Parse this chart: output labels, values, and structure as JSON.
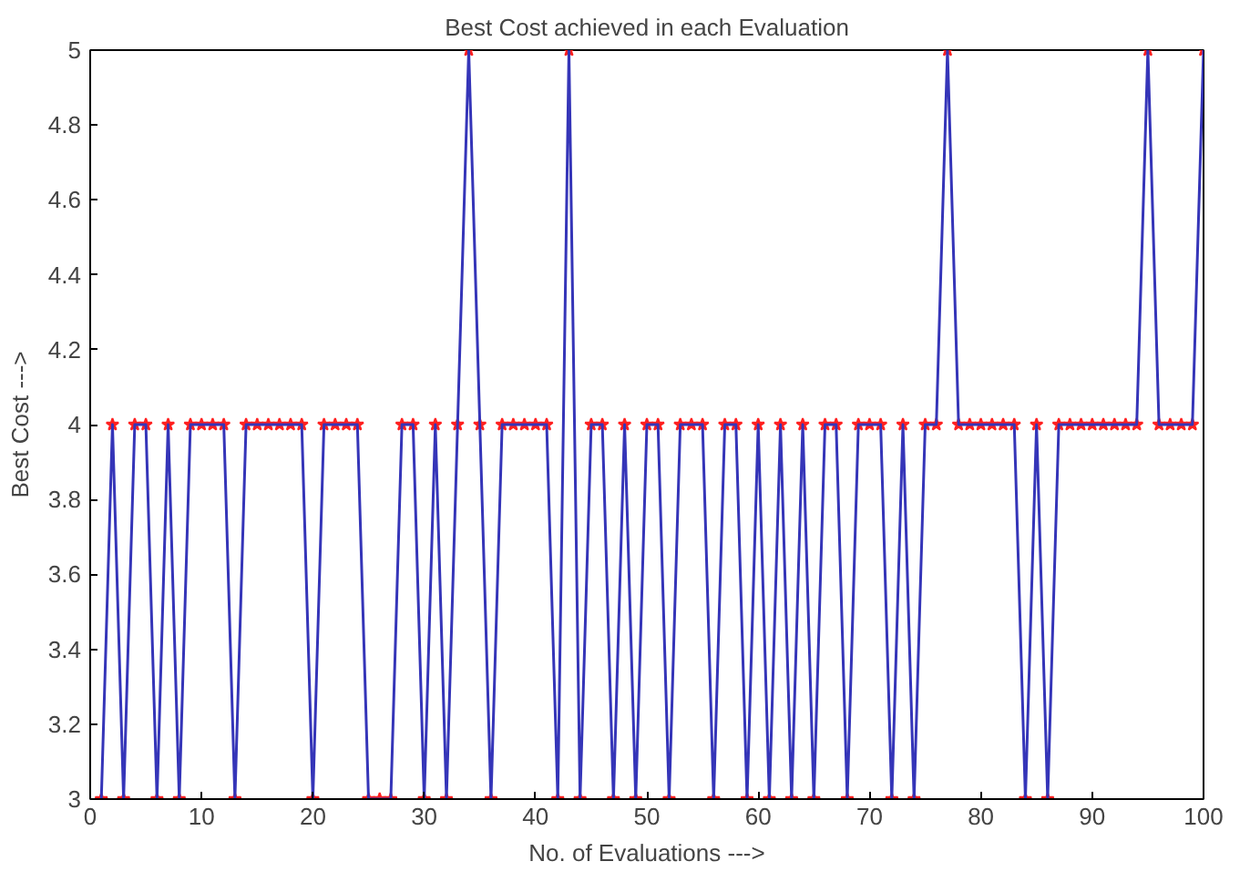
{
  "chart_data": {
    "type": "line",
    "title": "Best Cost achieved in each Evaluation",
    "xlabel": "No. of Evaluations --->",
    "ylabel": "Best Cost --->",
    "x": [
      1,
      2,
      3,
      4,
      5,
      6,
      7,
      8,
      9,
      10,
      11,
      12,
      13,
      14,
      15,
      16,
      17,
      18,
      19,
      20,
      21,
      22,
      23,
      24,
      25,
      26,
      27,
      28,
      29,
      30,
      31,
      32,
      33,
      34,
      35,
      36,
      37,
      38,
      39,
      40,
      41,
      42,
      43,
      44,
      45,
      46,
      47,
      48,
      49,
      50,
      51,
      52,
      53,
      54,
      55,
      56,
      57,
      58,
      59,
      60,
      61,
      62,
      63,
      64,
      65,
      66,
      67,
      68,
      69,
      70,
      71,
      72,
      73,
      74,
      75,
      76,
      77,
      78,
      79,
      80,
      81,
      82,
      83,
      84,
      85,
      86,
      87,
      88,
      89,
      90,
      91,
      92,
      93,
      94,
      95,
      96,
      97,
      98,
      99,
      100
    ],
    "series": [
      {
        "color": "#3535b8",
        "values": [
          3,
          4,
          3,
          4,
          4,
          3,
          4,
          3,
          4,
          4,
          4,
          4,
          3,
          4,
          4,
          4,
          4,
          4,
          4,
          3,
          4,
          4,
          4,
          4,
          3,
          3,
          3,
          4,
          4,
          3,
          4,
          3,
          4,
          5,
          4,
          3,
          4,
          4,
          4,
          4,
          4,
          3,
          5,
          3,
          4,
          4,
          3,
          4,
          3,
          4,
          4,
          3,
          4,
          4,
          4,
          3,
          4,
          4,
          3,
          4,
          3,
          4,
          3,
          4,
          3,
          4,
          4,
          3,
          4,
          4,
          4,
          3,
          4,
          3,
          4,
          4,
          5,
          4,
          4,
          4,
          4,
          4,
          4,
          3,
          4,
          3,
          4,
          4,
          4,
          4,
          4,
          4,
          4,
          4,
          5,
          4,
          4,
          4,
          4,
          5
        ],
        "colors": [
          "#ff2020",
          "#ff2020",
          "#ff2020",
          "#ff2020",
          "#ff2020",
          "#ff2020",
          "#ff2020",
          "#ff2020",
          "#ff2020",
          "#ff2020",
          "#ff2020",
          "#ff2020",
          "#ff2020",
          "#ff2020",
          "#ff2020",
          "#ff2020",
          "#ff2020",
          "#ff2020",
          "#ff2020",
          "#ff2020",
          "#ff2020",
          "#ff2020",
          "#ff2020",
          "#ff2020",
          "#ff2020",
          "#ff2020",
          "#ff2020",
          "#ff2020",
          "#ff2020",
          "#ff2020",
          "#ff2020",
          "#ff2020",
          "#ff2020",
          "#ff2020",
          "#ff2020",
          "#ff2020",
          "#ff2020",
          "#ff2020",
          "#ff2020",
          "#ff2020",
          "#ff2020",
          "#ff2020",
          "#ff2020",
          "#ff2020",
          "#ff2020",
          "#ff2020",
          "#ff2020",
          "#ff2020",
          "#ff2020",
          "#ff2020",
          "#ff2020",
          "#ff2020",
          "#ff2020",
          "#ff2020",
          "#ff2020",
          "#ff2020",
          "#ff2020",
          "#ff2020",
          "#ff2020",
          "#ff2020",
          "#ff2020",
          "#ff2020",
          "#ff2020",
          "#ff2020",
          "#ff2020",
          "#ff2020",
          "#ff2020",
          "#ff2020",
          "#ff2020",
          "#ff2020",
          "#ff2020",
          "#ff2020",
          "#ff2020",
          "#ff2020",
          "#ff2020",
          "#ff2020",
          "#ff2020",
          "#ff2020",
          "#ff2020",
          "#ff2020",
          "#ff2020",
          "#ff2020",
          "#ff2020",
          "#ff2020",
          "#ff2020",
          "#ff2020",
          "#ff2020",
          "#ff2020",
          "#ff2020",
          "#ff2020",
          "#ff2020",
          "#ff2020",
          "#ff2020",
          "#ff2020",
          "#ff2020",
          "#ff2020",
          "#ff2020",
          "#ff2020",
          "#ff2020",
          "#ff2020"
        ]
      }
    ],
    "marker": "star",
    "line_style": "solid",
    "grid": false,
    "xlim": [
      0,
      100
    ],
    "xticks": [
      0,
      10,
      20,
      30,
      40,
      50,
      60,
      70,
      80,
      90,
      100
    ],
    "ylim": [
      3,
      5
    ],
    "yticks": [
      3,
      3.2,
      3.4,
      3.6,
      3.8,
      4,
      4.2,
      4.4,
      4.6,
      4.8,
      5
    ]
  }
}
